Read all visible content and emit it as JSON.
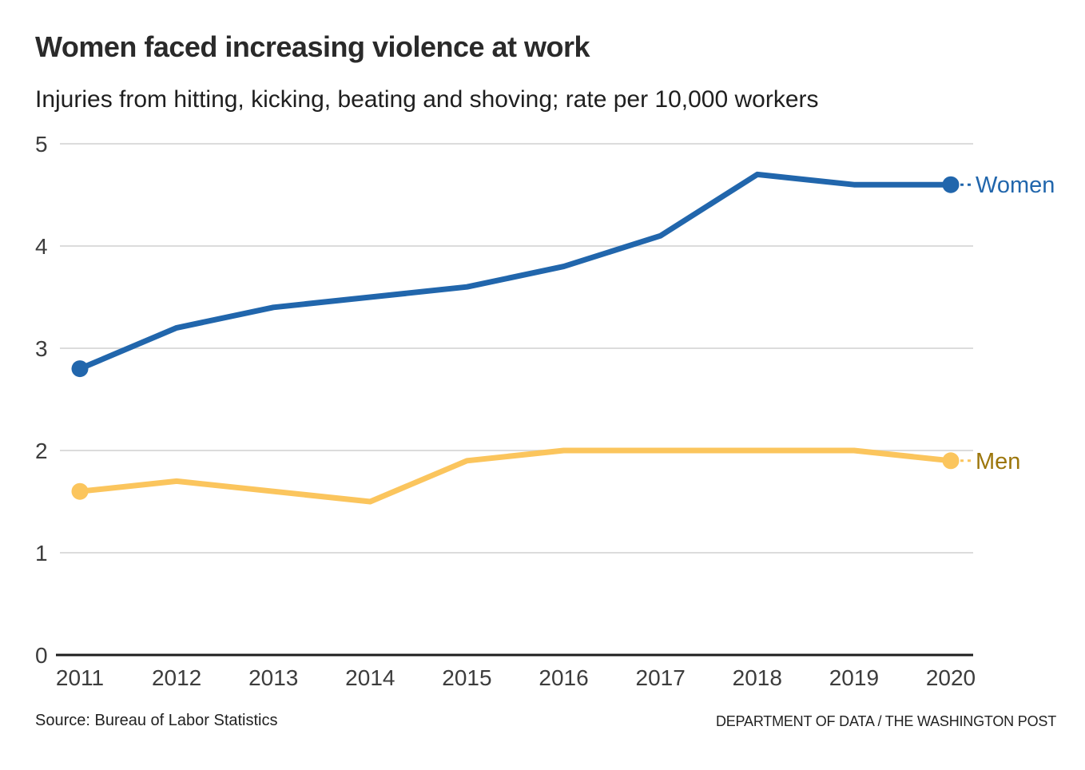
{
  "chart_data": {
    "type": "line",
    "title": "Women faced increasing violence at work",
    "subtitle": "Injuries from hitting, kicking, beating and shoving; rate per 10,000 workers",
    "x": [
      2011,
      2012,
      2013,
      2014,
      2015,
      2016,
      2017,
      2018,
      2019,
      2020
    ],
    "series": [
      {
        "name": "Women",
        "values": [
          2.8,
          3.2,
          3.4,
          3.5,
          3.6,
          3.8,
          4.1,
          4.7,
          4.6,
          4.6
        ],
        "color": "#2166ac",
        "label_color": "#2166ac"
      },
      {
        "name": "Men",
        "values": [
          1.6,
          1.7,
          1.6,
          1.5,
          1.9,
          2.0,
          2.0,
          2.0,
          2.0,
          1.9
        ],
        "color": "#fbc55d",
        "label_color": "#9c760b"
      }
    ],
    "xlabel": "",
    "ylabel": "",
    "ylim": [
      0,
      5
    ],
    "yticks": [
      0,
      1,
      2,
      3,
      4,
      5
    ],
    "grid": "horizontal",
    "grid_color": "#dcdcdc",
    "axis_color": "#1d1d1d",
    "legend_position": "end-of-line",
    "endpoint_markers": "first-and-last"
  },
  "footer": {
    "source": "Source: Bureau of Labor Statistics",
    "credit": "DEPARTMENT OF DATA / THE WASHINGTON POST"
  }
}
